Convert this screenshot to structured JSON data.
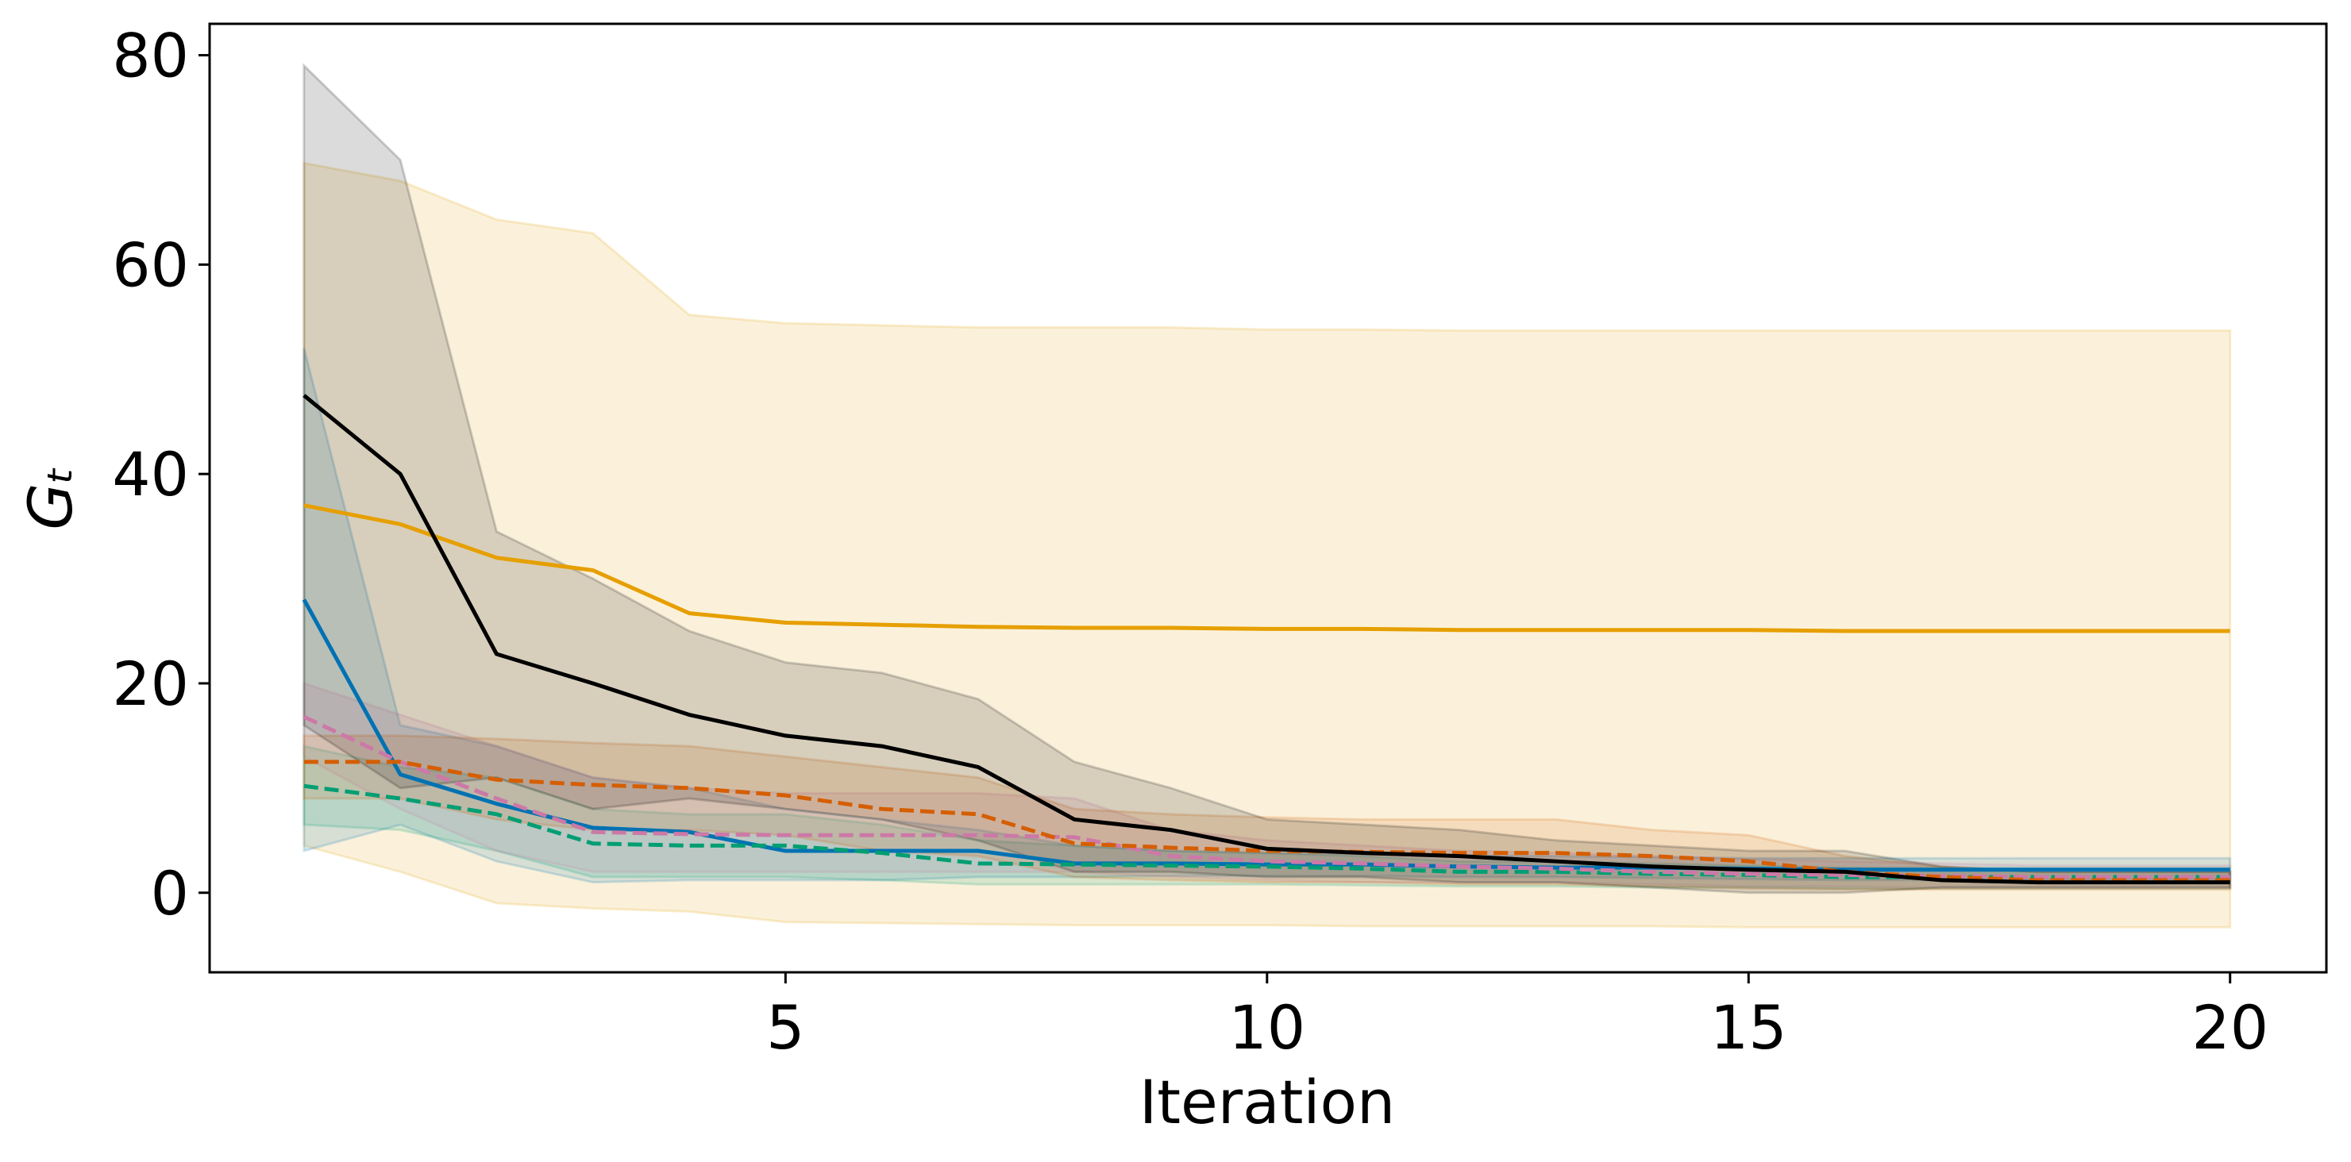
{
  "chart_data": {
    "type": "line",
    "xlabel": "Iteration",
    "ylabel": "Gₜ",
    "x": [
      0,
      1,
      2,
      3,
      4,
      5,
      6,
      7,
      8,
      9,
      10,
      11,
      12,
      13,
      14,
      15,
      16,
      17,
      18,
      19,
      20
    ],
    "xlim": [
      -0.98,
      21.0
    ],
    "xticks": [
      5,
      10,
      15,
      20
    ],
    "ylim": [
      -7.6,
      83
    ],
    "yticks": [
      0,
      20,
      40,
      60,
      80
    ],
    "grid": false,
    "series": [
      {
        "color": "#E69F00",
        "linestyle": "solid",
        "values": [
          37,
          35.2,
          32,
          30.8,
          26.7,
          25.8,
          25.6,
          25.4,
          25.3,
          25.3,
          25.2,
          25.2,
          25.1,
          25.1,
          25.1,
          25.1,
          25,
          25,
          25,
          25,
          25
        ],
        "upper": [
          69.7,
          68,
          64.3,
          63,
          55.2,
          54.4,
          54.2,
          54,
          54,
          54,
          53.8,
          53.8,
          53.7,
          53.7,
          53.7,
          53.7,
          53.7,
          53.7,
          53.7,
          53.7,
          53.7
        ],
        "lower": [
          4.5,
          2,
          -1,
          -1.5,
          -1.8,
          -2.8,
          -2.9,
          -3,
          -3.1,
          -3.1,
          -3.1,
          -3.2,
          -3.2,
          -3.2,
          -3.2,
          -3.3,
          -3.3,
          -3.3,
          -3.3,
          -3.3,
          -3.3
        ]
      },
      {
        "color": "#0072B2",
        "linestyle": "solid",
        "values": [
          28,
          11.3,
          8.5,
          6.2,
          5.8,
          4,
          4,
          4,
          2.8,
          2.8,
          2.7,
          2.7,
          2.5,
          2.4,
          2.4,
          2.3,
          2.2,
          2.2,
          2.2,
          2.2,
          2.2
        ],
        "upper": [
          52,
          16,
          14,
          11,
          10,
          8,
          7,
          6,
          4.5,
          4,
          3.8,
          3.7,
          3.6,
          3.5,
          3.4,
          3.3,
          3.3,
          3.3,
          3.3,
          3.3,
          3.3
        ],
        "lower": [
          4,
          6.5,
          3,
          1,
          1.2,
          1.2,
          1.2,
          1.5,
          1.5,
          1.6,
          1.6,
          1.6,
          1.5,
          1.5,
          1.4,
          1.3,
          1.2,
          1.2,
          1.2,
          1.2,
          1.2
        ]
      },
      {
        "color": "#009E73",
        "linestyle": "dashed",
        "values": [
          10.2,
          9,
          7.5,
          4.7,
          4.5,
          4.5,
          3.8,
          2.8,
          2.7,
          2.6,
          2.5,
          2.3,
          2,
          2,
          1.8,
          1.7,
          1.5,
          1.5,
          1.5,
          1.5,
          1.5
        ],
        "upper": [
          14,
          12,
          11,
          8,
          7.5,
          7.5,
          6.5,
          5,
          4.5,
          4,
          3.8,
          3.5,
          3,
          3,
          2.8,
          2.6,
          2.4,
          2.4,
          2.4,
          2.4,
          2.4
        ],
        "lower": [
          6.5,
          6,
          4,
          1.5,
          1.5,
          1.5,
          1.2,
          0.8,
          0.8,
          0.8,
          0.8,
          0.7,
          0.6,
          0.6,
          0.5,
          0.5,
          0.4,
          0.4,
          0.4,
          0.4,
          0.4
        ]
      },
      {
        "color": "#CC79A7",
        "linestyle": "dashed",
        "values": [
          16.8,
          12.5,
          9,
          5.8,
          5.6,
          5.5,
          5.5,
          5.5,
          5.3,
          3.5,
          3,
          2.8,
          2.5,
          2.3,
          2,
          1.8,
          1.7,
          1.6,
          1.5,
          1.5,
          1.5
        ],
        "upper": [
          20,
          17,
          14,
          11,
          10,
          9.5,
          9.5,
          9.5,
          9,
          6,
          5,
          4.5,
          4,
          3.8,
          3.5,
          3.2,
          3,
          2.8,
          2.6,
          2.6,
          2.6
        ],
        "lower": [
          13,
          8,
          4,
          2,
          2,
          2,
          2,
          2,
          2,
          1.5,
          1.2,
          1,
          1,
          1,
          0.8,
          0.6,
          0.6,
          0.5,
          0.5,
          0.5,
          0.5
        ]
      },
      {
        "color": "#D55E00",
        "linestyle": "dashed",
        "values": [
          12.5,
          12.5,
          10.8,
          10.3,
          10,
          9.3,
          8,
          7.5,
          4.7,
          4.3,
          4,
          3.9,
          3.8,
          3.8,
          3.5,
          3,
          2,
          1.5,
          1.2,
          1.2,
          1.2
        ],
        "upper": [
          15,
          15,
          14.7,
          14.3,
          14,
          13,
          12,
          11,
          8,
          7.5,
          7.2,
          7,
          7,
          7,
          6,
          5.5,
          3.5,
          2.5,
          2,
          2,
          2
        ],
        "lower": [
          9,
          9,
          7,
          6,
          6,
          5.5,
          4,
          3.5,
          1.5,
          1.2,
          1,
          1,
          0.8,
          0.8,
          0.6,
          0.4,
          0.3,
          0.3,
          0.3,
          0.3,
          0.3
        ]
      },
      {
        "color": "#000000",
        "linestyle": "solid",
        "values": [
          47.5,
          40,
          22.8,
          20,
          17,
          15,
          14,
          12,
          7,
          6,
          4.2,
          3.8,
          3.5,
          3,
          2.5,
          2.2,
          2,
          1.2,
          1,
          1,
          1
        ],
        "upper": [
          79,
          70,
          34.5,
          30,
          25,
          22,
          21,
          18.5,
          12.5,
          10,
          7,
          6.5,
          6,
          5,
          4.5,
          4,
          4,
          2.5,
          2,
          2,
          2
        ],
        "lower": [
          16,
          10,
          11,
          8,
          9,
          8,
          7,
          5,
          2,
          2,
          1.5,
          1.5,
          1,
          1,
          0.5,
          0,
          0,
          0.5,
          0.5,
          0.5,
          0.5
        ]
      }
    ]
  }
}
